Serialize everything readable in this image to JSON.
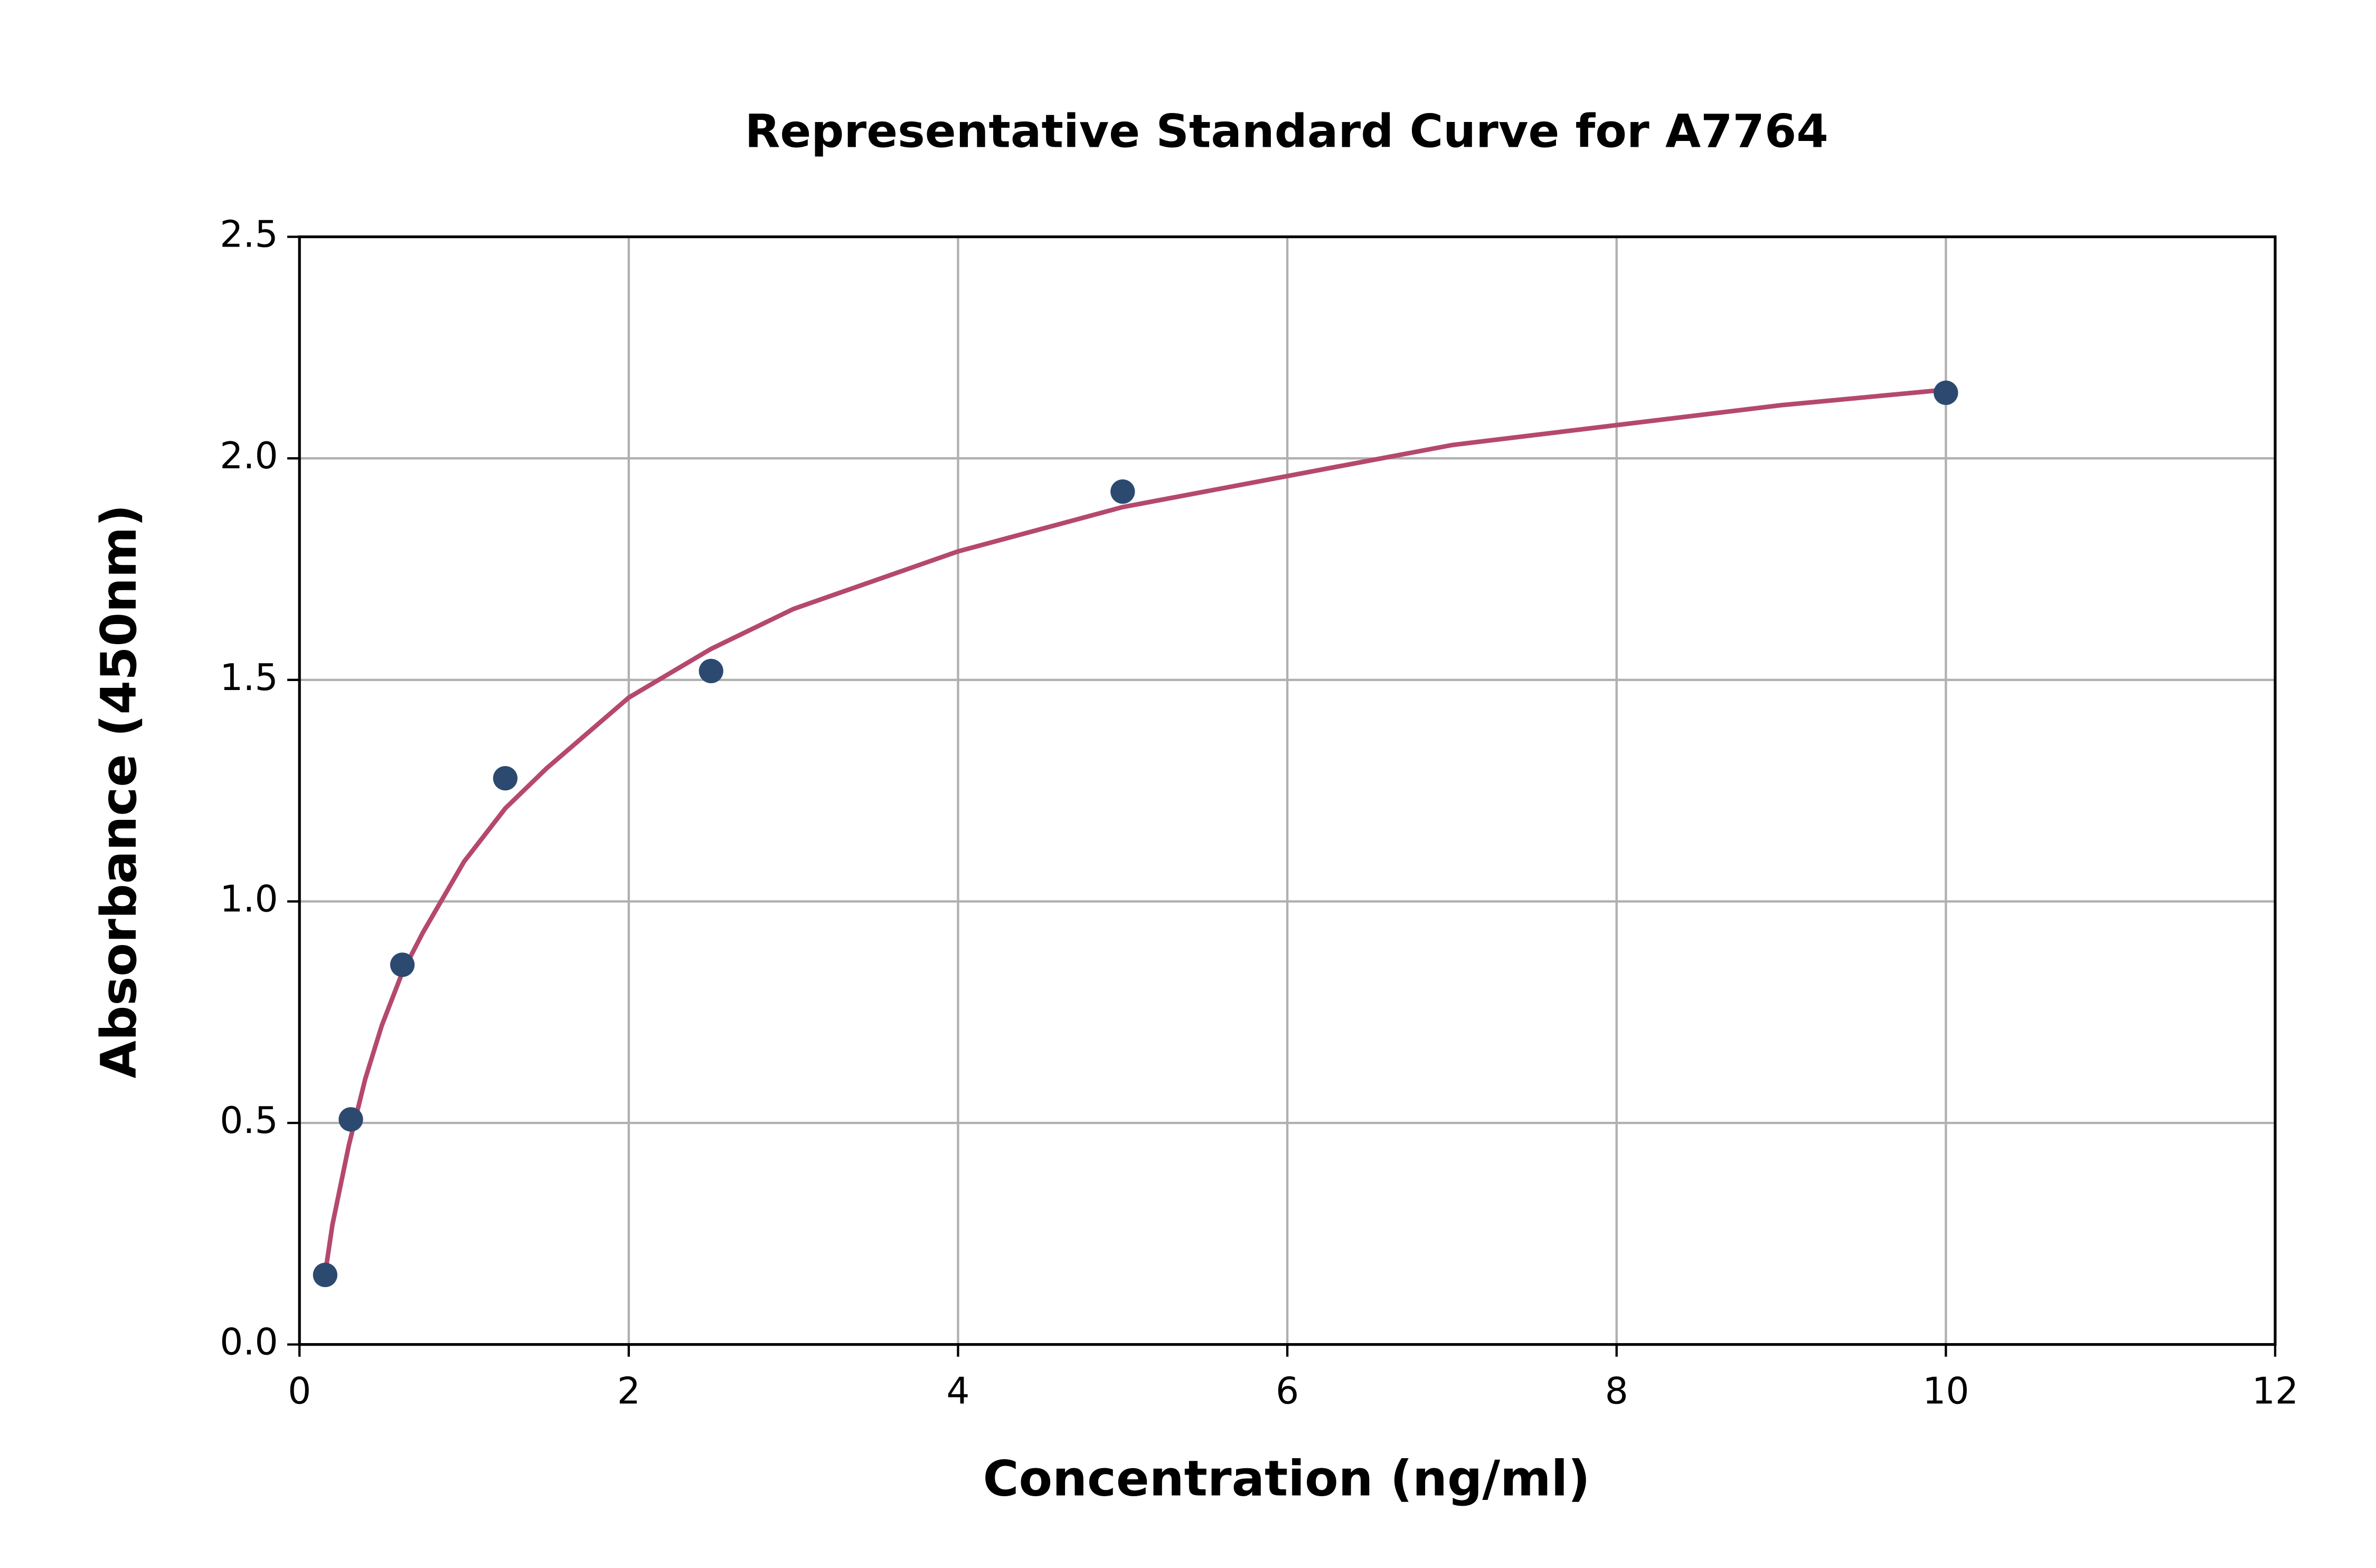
{
  "chart_data": {
    "type": "scatter",
    "title": "Representative Standard Curve for A7764",
    "x_label": "Concentration (ng/ml)",
    "y_label": "Absorbance (450nm)",
    "xlim": [
      0,
      12
    ],
    "xticks": [
      0,
      2,
      4,
      6,
      8,
      10,
      12
    ],
    "ylim": [
      0,
      2.5
    ],
    "yticks": [
      {
        "value": 0,
        "label": "0.0"
      },
      {
        "value": 0.5,
        "label": "0.5"
      },
      {
        "value": 1,
        "label": "1.0"
      },
      {
        "value": 1.5,
        "label": "1.5"
      },
      {
        "value": 2,
        "label": "2.0"
      },
      {
        "value": 2.5,
        "label": "2.5"
      }
    ],
    "grid": true,
    "series": [
      {
        "type": "line",
        "color": "#b5486f",
        "x": [
          0.156,
          0.2,
          0.3,
          0.4,
          0.5,
          0.625,
          0.75,
          1,
          1.25,
          1.5,
          2,
          2.5,
          3,
          4,
          5,
          6,
          7,
          8,
          9,
          10
        ],
        "values": [
          0.16,
          0.27,
          0.45,
          0.6,
          0.72,
          0.84,
          0.93,
          1.09,
          1.21,
          1.3,
          1.46,
          1.57,
          1.66,
          1.79,
          1.89,
          1.96,
          2.03,
          2.075,
          2.12,
          2.155
        ]
      },
      {
        "type": "scatter",
        "color": "#2c4a70",
        "x": [
          0.156,
          0.312,
          0.625,
          1.25,
          2.5,
          5,
          10
        ],
        "values": [
          0.157,
          0.508,
          0.857,
          1.278,
          1.52,
          1.925,
          2.148
        ]
      }
    ]
  }
}
